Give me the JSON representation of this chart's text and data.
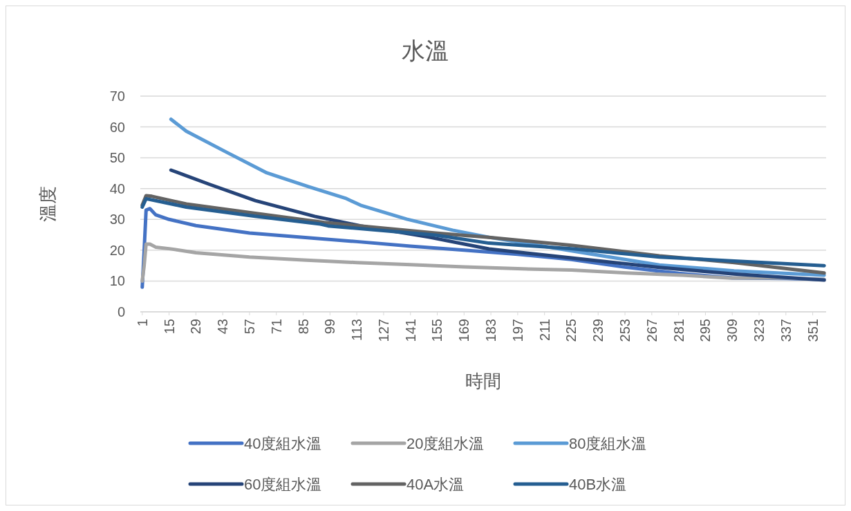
{
  "chart_data": {
    "type": "line",
    "title": "水溫",
    "xlabel": "時間",
    "ylabel": "溫度",
    "xlim": [
      0,
      358
    ],
    "xticks": [
      1,
      15,
      29,
      43,
      57,
      71,
      85,
      99,
      113,
      127,
      141,
      155,
      169,
      183,
      197,
      211,
      225,
      239,
      253,
      267,
      281,
      295,
      309,
      323,
      337,
      351
    ],
    "ylim": [
      0,
      70
    ],
    "yticks": [
      0,
      10,
      20,
      30,
      40,
      50,
      60,
      70
    ],
    "grid": "y",
    "legend": "bottom",
    "marker": "none",
    "line_style": "solid",
    "series": [
      {
        "name": "40度組水溫",
        "color": "#4472c4",
        "x": [
          1,
          2,
          3,
          5,
          8,
          15,
          29,
          57,
          85,
          113,
          141,
          169,
          197,
          225,
          253,
          281,
          309,
          337,
          357
        ],
        "values": [
          8,
          20,
          33,
          33.5,
          31.5,
          30,
          28,
          25.6,
          24.2,
          22.8,
          21.3,
          20,
          18.7,
          17,
          14.5,
          12.5,
          11,
          10.8,
          10.5
        ]
      },
      {
        "name": "20度組水溫",
        "color": "#a5a5a5",
        "x": [
          1,
          2,
          3,
          5,
          8,
          15,
          29,
          57,
          85,
          113,
          141,
          169,
          197,
          225,
          254,
          283,
          307,
          337,
          357
        ],
        "values": [
          10,
          15,
          22,
          22,
          21,
          20.5,
          19.2,
          17.8,
          16.8,
          16,
          15.3,
          14.6,
          14,
          13.6,
          12.6,
          11.9,
          11,
          11,
          10.5
        ]
      },
      {
        "name": "80度組水溫",
        "color": "#5b9bd5",
        "x": [
          16,
          24,
          45,
          66,
          88,
          107,
          115,
          139,
          163,
          182,
          235,
          271,
          310,
          357
        ],
        "values": [
          62.5,
          58.6,
          51.8,
          45.1,
          40.6,
          36.9,
          34.6,
          30.1,
          26.5,
          24.2,
          18.8,
          15.2,
          13.3,
          11.9
        ]
      },
      {
        "name": "60度組水溫",
        "color": "#264478",
        "x": [
          16,
          36,
          60,
          91,
          115,
          151,
          182,
          225,
          271,
          310,
          357
        ],
        "values": [
          46,
          41.4,
          36.1,
          31,
          27.9,
          24.2,
          20.4,
          17.5,
          14.4,
          12.3,
          10.3
        ]
      },
      {
        "name": "40A水溫",
        "color": "#636363",
        "x": [
          1,
          3,
          6,
          24,
          60,
          96,
          154,
          182,
          225,
          271,
          310,
          357
        ],
        "values": [
          34.6,
          37.7,
          37.5,
          35,
          32,
          29,
          25.6,
          24.2,
          21.6,
          18.2,
          16,
          12.6
        ]
      },
      {
        "name": "40B水溫",
        "color": "#255e91",
        "x": [
          1,
          3,
          24,
          60,
          94,
          98,
          154,
          182,
          225,
          271,
          310,
          357
        ],
        "values": [
          34,
          36.7,
          34,
          31,
          28.5,
          27.9,
          24.9,
          22.3,
          20.5,
          17.8,
          16.5,
          15
        ]
      }
    ]
  }
}
